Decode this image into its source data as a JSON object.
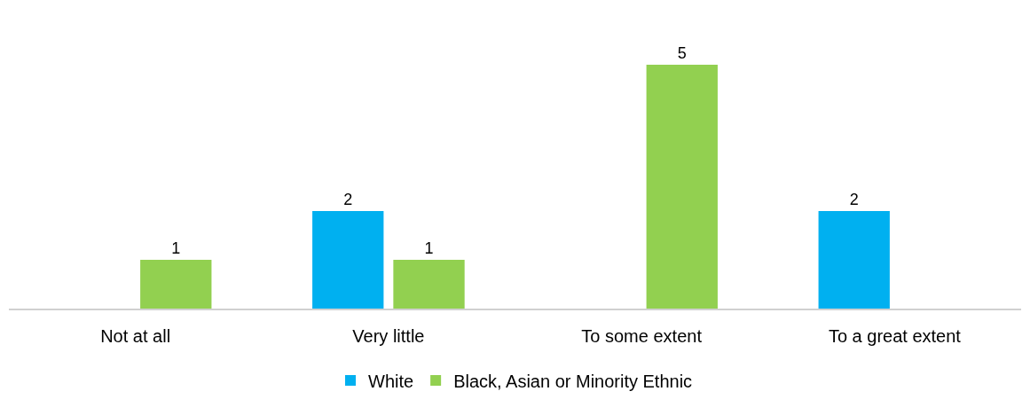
{
  "chart_data": {
    "type": "bar",
    "categories": [
      "Not at all",
      "Very little",
      "To some extent",
      "To a great extent"
    ],
    "series": [
      {
        "name": "White",
        "color": "#00b0f0",
        "values": [
          null,
          2,
          null,
          2
        ]
      },
      {
        "name": "Black, Asian or Minority Ethnic",
        "color": "#92d050",
        "values": [
          1,
          1,
          5,
          null
        ]
      }
    ],
    "data_labels": true,
    "legend": "bottom",
    "tick_labels": "x"
  }
}
